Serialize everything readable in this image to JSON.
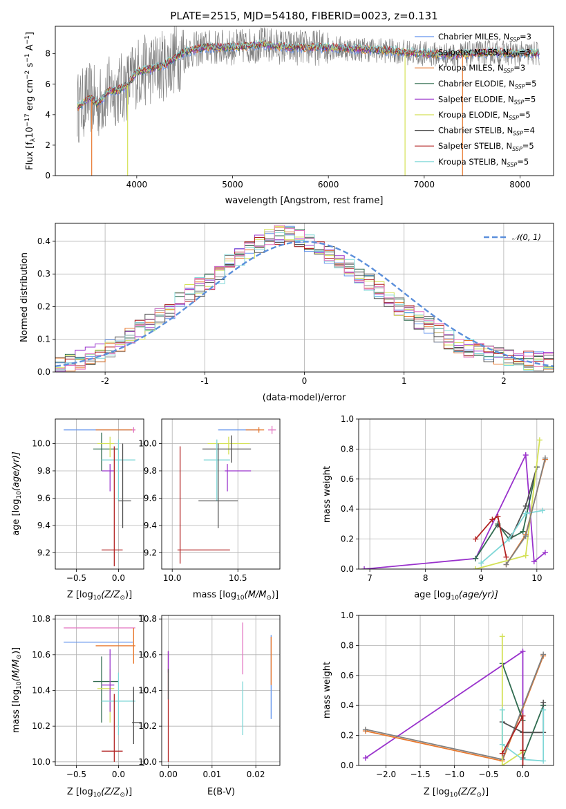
{
  "chart_data": [
    {
      "id": "spectrum",
      "type": "line",
      "title": "PLATE=2515, MJD=54180, FIBERID=0023, z=0.131",
      "xlabel": "wavelength [Angstrom, rest frame]",
      "ylabel_parts": [
        "Flux [f",
        "λ",
        "10",
        "−17",
        " erg cm",
        "−2",
        " s",
        "−1",
        " A",
        "−1",
        "]"
      ],
      "xlim": [
        3150,
        8350
      ],
      "ylim": [
        0,
        9.8
      ],
      "xticks": [
        4000,
        5000,
        6000,
        7000,
        8000
      ],
      "yticks": [
        0,
        2,
        4,
        6,
        8
      ],
      "grid": false,
      "legend_position": "top-right",
      "legend": [
        {
          "name": "Chabrier MILES, N",
          "sub": "SSP",
          "val": "=3",
          "color": "#6495ED"
        },
        {
          "name": "Salpeter MILES, N",
          "sub": "SSP",
          "val": "=3",
          "color": "#808080"
        },
        {
          "name": "Kroupa MILES, N",
          "sub": "SSP",
          "val": "=3",
          "color": "#E8782D"
        },
        {
          "name": "Chabrier ELODIE, N",
          "sub": "SSP",
          "val": "=5",
          "color": "#2F6B4F"
        },
        {
          "name": "Salpeter ELODIE, N",
          "sub": "SSP",
          "val": "=5",
          "color": "#9932CC"
        },
        {
          "name": "Kroupa ELODIE, N",
          "sub": "SSP",
          "val": "=5",
          "color": "#D4E157"
        },
        {
          "name": "Chabrier STELIB, N",
          "sub": "SSP",
          "val": "=4",
          "color": "#505050"
        },
        {
          "name": "Salpeter STELIB, N",
          "sub": "SSP",
          "val": "=5",
          "color": "#B22222"
        },
        {
          "name": "Kroupa STELIB, N",
          "sub": "SSP",
          "val": "=5",
          "color": "#7FD7D7"
        }
      ],
      "continuum": {
        "x": [
          3400,
          3500,
          3600,
          3700,
          3800,
          3900,
          4000,
          4100,
          4200,
          4300,
          4500,
          4700,
          5000,
          5300,
          5600,
          6000,
          6300,
          6600,
          7000,
          7300,
          7700,
          8000,
          8200
        ],
        "y": [
          4.5,
          5.1,
          4.7,
          5.5,
          5.6,
          5.9,
          6.8,
          6.9,
          7.1,
          7.3,
          8.1,
          8.4,
          8.4,
          8.6,
          8.4,
          8.4,
          8.3,
          8.2,
          8.0,
          7.9,
          8.1,
          8.0,
          8.0
        ]
      },
      "data_noise_amplitude": 1.2,
      "data_range": [
        3380,
        8200
      ],
      "dropouts": [
        {
          "x": 3530,
          "color": "#E8782D"
        },
        {
          "x": 3905,
          "color": "#D4E157"
        },
        {
          "x": 6800,
          "color": "#D4E157"
        },
        {
          "x": 7400,
          "color": "#E8782D"
        }
      ]
    },
    {
      "id": "residuals",
      "type": "step",
      "xlabel": "(data-model)/error",
      "ylabel": "Normed distribution",
      "xlim": [
        -2.5,
        2.5
      ],
      "ylim": [
        0,
        0.455
      ],
      "xticks": [
        -2,
        -1,
        0,
        1,
        2
      ],
      "yticks": [
        0.0,
        0.1,
        0.2,
        0.3,
        0.4
      ],
      "grid": true,
      "legend_position": "top-right",
      "legend": [
        {
          "name": "𝒩(0, 1)",
          "color": "#5B8FDB",
          "style": "dashed"
        }
      ],
      "bin_width": 0.1,
      "bin_start": -2.5,
      "envelope": [
        0.03,
        0.032,
        0.038,
        0.048,
        0.06,
        0.075,
        0.09,
        0.11,
        0.13,
        0.15,
        0.17,
        0.19,
        0.215,
        0.24,
        0.26,
        0.28,
        0.3,
        0.33,
        0.35,
        0.37,
        0.39,
        0.41,
        0.42,
        0.42,
        0.41,
        0.39,
        0.38,
        0.36,
        0.34,
        0.32,
        0.3,
        0.27,
        0.25,
        0.22,
        0.2,
        0.18,
        0.16,
        0.14,
        0.12,
        0.1,
        0.085,
        0.07,
        0.06,
        0.05,
        0.045,
        0.04,
        0.038,
        0.035,
        0.033,
        0.032
      ],
      "series_colors": [
        "#6495ED",
        "#808080",
        "#E8782D",
        "#2F6B4F",
        "#9932CC",
        "#D4E157",
        "#505050",
        "#B22222",
        "#7FD7D7",
        "#E377C2"
      ]
    },
    {
      "id": "age-vs-Z",
      "type": "errorbar",
      "xlabel_parts": [
        "Z [log",
        "10",
        "(Z/Z",
        "⊙",
        ")]"
      ],
      "ylabel_parts": [
        "age  [log",
        "10",
        "(age/yr)]"
      ],
      "xlim": [
        -0.75,
        0.3
      ],
      "ylim": [
        9.08,
        10.18
      ],
      "xticks": [
        -0.5,
        0.0
      ],
      "xtick_labels": [
        "−0.5",
        "0.0"
      ],
      "yticks": [
        9.2,
        9.4,
        9.6,
        9.8,
        10.0
      ],
      "grid": true,
      "points": [
        {
          "x": -0.05,
          "y": 10.1,
          "xerr": [
            0.6,
            0.25
          ],
          "yerr": [
            0,
            0
          ],
          "color": "#6495ED"
        },
        {
          "x": 0.18,
          "y": 10.1,
          "xerr": [
            0.45,
            0.02
          ],
          "yerr": [
            0,
            0
          ],
          "color": "#E8782D"
        },
        {
          "x": 0.18,
          "y": 10.1,
          "xerr": [
            0.02,
            0.02
          ],
          "yerr": [
            0.02,
            0.02
          ],
          "color": "#E377C2"
        },
        {
          "x": -0.2,
          "y": 9.96,
          "xerr": [
            0.1,
            0.2
          ],
          "yerr": [
            0.16,
            0.12
          ],
          "color": "#2F6B4F"
        },
        {
          "x": -0.1,
          "y": 10.0,
          "xerr": [
            0.15,
            0.05
          ],
          "yerr": [
            0.1,
            0.05
          ],
          "color": "#D4E157"
        },
        {
          "x": -0.1,
          "y": 9.8,
          "xerr": [
            0.1,
            0.05
          ],
          "yerr": [
            0.15,
            0.05
          ],
          "color": "#9932CC"
        },
        {
          "x": 0.0,
          "y": 9.88,
          "xerr": [
            0.2,
            0.2
          ],
          "yerr": [
            0.3,
            0.15
          ],
          "color": "#7FD7D7"
        },
        {
          "x": 0.05,
          "y": 9.58,
          "xerr": [
            0.05,
            0.1
          ],
          "yerr": [
            0.2,
            0.42
          ],
          "color": "#505050"
        },
        {
          "x": -0.05,
          "y": 9.22,
          "xerr": [
            0.15,
            0.1
          ],
          "yerr": [
            0.12,
            0.76
          ],
          "color": "#B22222"
        }
      ]
    },
    {
      "id": "age-vs-mass",
      "type": "errorbar",
      "xlabel_parts": [
        "mass [log",
        "10",
        "(M/M",
        "⊙",
        ")]"
      ],
      "xlim": [
        9.92,
        10.82
      ],
      "ylim": [
        9.08,
        10.18
      ],
      "xticks": [
        10.0,
        10.5
      ],
      "xtick_labels": [
        "10.0",
        "10.5"
      ],
      "yticks": [
        9.2,
        9.4,
        9.6,
        9.8,
        10.0
      ],
      "grid": true,
      "points": [
        {
          "x": 10.65,
          "y": 10.1,
          "xerr": [
            0.3,
            0.02
          ],
          "yerr": [
            0,
            0
          ],
          "color": "#6495ED"
        },
        {
          "x": 10.66,
          "y": 10.1,
          "xerr": [
            0.1,
            0.04
          ],
          "yerr": [
            0.02,
            0.02
          ],
          "color": "#E8782D"
        },
        {
          "x": 10.76,
          "y": 10.1,
          "xerr": [
            0.03,
            0.03
          ],
          "yerr": [
            0.03,
            0.03
          ],
          "color": "#E377C2"
        },
        {
          "x": 10.43,
          "y": 10.0,
          "xerr": [
            0.16,
            0.16
          ],
          "yerr": [
            0.08,
            0.05
          ],
          "color": "#D4E157"
        },
        {
          "x": 10.45,
          "y": 9.96,
          "xerr": [
            0.22,
            0.15
          ],
          "yerr": [
            0.1,
            0.1
          ],
          "color": "#505050"
        },
        {
          "x": 10.34,
          "y": 9.88,
          "xerr": [
            0.1,
            0.1
          ],
          "yerr": [
            0.3,
            0.15
          ],
          "color": "#7FD7D7"
        },
        {
          "x": 10.42,
          "y": 9.8,
          "xerr": [
            0.02,
            0.18
          ],
          "yerr": [
            0.15,
            0.05
          ],
          "color": "#9932CC"
        },
        {
          "x": 10.35,
          "y": 9.58,
          "xerr": [
            0.15,
            0.15
          ],
          "yerr": [
            0.2,
            0.42
          ],
          "color": "#505050"
        },
        {
          "x": 10.06,
          "y": 9.22,
          "xerr": [
            0.02,
            0.38
          ],
          "yerr": [
            0.1,
            0.76
          ],
          "color": "#B22222"
        }
      ]
    },
    {
      "id": "massweight-vs-age",
      "type": "line",
      "xlabel_parts": [
        "age  [log",
        "10",
        "(age/yr)]"
      ],
      "ylabel": "mass weight",
      "xlim": [
        6.8,
        10.3
      ],
      "ylim": [
        0,
        1.0
      ],
      "xticks": [
        7,
        8,
        9,
        10
      ],
      "yticks": [
        0.0,
        0.2,
        0.4,
        0.6,
        0.8,
        1.0
      ],
      "grid": true,
      "series": [
        {
          "color": "#9932CC",
          "x": [
            6.9,
            8.9,
            9.8,
            9.95,
            10.15
          ],
          "y": [
            0.0,
            0.07,
            0.76,
            0.05,
            0.11
          ]
        },
        {
          "color": "#2F6B4F",
          "x": [
            8.9,
            9.3,
            9.5,
            9.75,
            10.0
          ],
          "y": [
            0.07,
            0.3,
            0.2,
            0.25,
            0.68
          ]
        },
        {
          "color": "#505050",
          "x": [
            9.3,
            9.55,
            9.8,
            10.0
          ],
          "y": [
            0.29,
            0.22,
            0.42,
            0.68
          ]
        },
        {
          "color": "#D4E157",
          "x": [
            8.9,
            9.8,
            10.05
          ],
          "y": [
            0.0,
            0.09,
            0.86
          ]
        },
        {
          "color": "#7FD7D7",
          "x": [
            9.0,
            9.5,
            9.8,
            10.1
          ],
          "y": [
            0.04,
            0.2,
            0.37,
            0.39
          ]
        },
        {
          "color": "#B22222",
          "x": [
            8.9,
            9.2,
            9.3,
            9.45
          ],
          "y": [
            0.2,
            0.33,
            0.35,
            0.08
          ]
        },
        {
          "color": "#E8782D",
          "x": [
            9.45,
            9.8,
            10.15
          ],
          "y": [
            0.03,
            0.23,
            0.73
          ]
        },
        {
          "color": "#808080",
          "x": [
            9.45,
            9.8,
            10.15
          ],
          "y": [
            0.03,
            0.22,
            0.74
          ]
        }
      ]
    },
    {
      "id": "mass-vs-Z",
      "type": "errorbar",
      "xlabel_parts": [
        "Z [log",
        "10",
        "(Z/Z",
        "⊙",
        ")]"
      ],
      "ylabel_parts": [
        "mass [log",
        "10",
        "(M/M",
        "⊙",
        ")]"
      ],
      "xlim": [
        -0.75,
        0.3
      ],
      "ylim": [
        9.98,
        10.82
      ],
      "xticks": [
        -0.5,
        0.0
      ],
      "xtick_labels": [
        "−0.5",
        "0.0"
      ],
      "yticks": [
        10.0,
        10.2,
        10.4,
        10.6,
        10.8
      ],
      "grid": true,
      "points": [
        {
          "x": -0.05,
          "y": 10.75,
          "xerr": [
            0.6,
            0.25
          ],
          "yerr": [
            0,
            0
          ],
          "color": "#E377C2"
        },
        {
          "x": -0.05,
          "y": 10.67,
          "xerr": [
            0.6,
            0.22
          ],
          "yerr": [
            0,
            0
          ],
          "color": "#6495ED"
        },
        {
          "x": 0.18,
          "y": 10.65,
          "xerr": [
            0.45,
            0.02
          ],
          "yerr": [
            0.1,
            0.1
          ],
          "color": "#E8782D"
        },
        {
          "x": -0.2,
          "y": 10.45,
          "xerr": [
            0.1,
            0.2
          ],
          "yerr": [
            0.23,
            0.14
          ],
          "color": "#2F6B4F"
        },
        {
          "x": -0.1,
          "y": 10.41,
          "xerr": [
            0.15,
            0.05
          ],
          "yerr": [
            0.19,
            0.11
          ],
          "color": "#D4E157"
        },
        {
          "x": -0.1,
          "y": 10.43,
          "xerr": [
            0.1,
            0.05
          ],
          "yerr": [
            0.15,
            0.2
          ],
          "color": "#9932CC"
        },
        {
          "x": 0.0,
          "y": 10.34,
          "xerr": [
            0.2,
            0.2
          ],
          "yerr": [
            0.19,
            0.16
          ],
          "color": "#7FD7D7"
        },
        {
          "x": 0.18,
          "y": 10.22,
          "xerr": [
            0.02,
            0.1
          ],
          "yerr": [
            0.12,
            0.2
          ],
          "color": "#505050"
        },
        {
          "x": -0.05,
          "y": 10.06,
          "xerr": [
            0.15,
            0.1
          ],
          "yerr": [
            0.06,
            0.32
          ],
          "color": "#B22222"
        }
      ]
    },
    {
      "id": "mass-vs-ebv",
      "type": "errorbar",
      "xlabel": "E(B-V)",
      "xlim": [
        -0.0015,
        0.0255
      ],
      "ylim": [
        9.98,
        10.82
      ],
      "xticks": [
        0.0,
        0.01,
        0.02
      ],
      "xtick_labels": [
        "0.00",
        "0.01",
        "0.02"
      ],
      "yticks": [
        10.0,
        10.2,
        10.4,
        10.6,
        10.8
      ],
      "grid": true,
      "points": [
        {
          "x": 0.0,
          "y": 10.4,
          "xerr": [
            0,
            0
          ],
          "yerr": [
            0.4,
            0.22
          ],
          "color": "#B22222"
        },
        {
          "x": 0.0,
          "y": 10.55,
          "xerr": [
            0,
            0
          ],
          "yerr": [
            0.05,
            0.07
          ],
          "color": "#9932CC"
        },
        {
          "x": 0.0,
          "y": 10.45,
          "xerr": [
            0,
            0
          ],
          "yerr": [
            0.1,
            0.07
          ],
          "color": "#505050"
        },
        {
          "x": 0.017,
          "y": 10.63,
          "xerr": [
            0,
            0
          ],
          "yerr": [
            0.14,
            0.15
          ],
          "color": "#E377C2"
        },
        {
          "x": 0.017,
          "y": 10.3,
          "xerr": [
            0,
            0
          ],
          "yerr": [
            0.15,
            0.15
          ],
          "color": "#7FD7D7"
        },
        {
          "x": 0.0235,
          "y": 10.47,
          "xerr": [
            0,
            0
          ],
          "yerr": [
            0.23,
            0.24
          ],
          "color": "#6495ED"
        },
        {
          "x": 0.0235,
          "y": 10.55,
          "xerr": [
            0,
            0
          ],
          "yerr": [
            0.12,
            0.15
          ],
          "color": "#E8782D"
        }
      ]
    },
    {
      "id": "massweight-vs-Z",
      "type": "line",
      "xlabel_parts": [
        "Z [log",
        "10",
        "(Z/Z",
        "⊙",
        ")]"
      ],
      "ylabel": "mass weight",
      "xlim": [
        -2.4,
        0.45
      ],
      "ylim": [
        0,
        1.0
      ],
      "xticks": [
        -2.0,
        -1.5,
        -1.0,
        -0.5,
        0.0
      ],
      "xtick_labels": [
        "−2.0",
        "−1.5",
        "−1.0",
        "−0.5",
        "0.0"
      ],
      "yticks": [
        0.0,
        0.2,
        0.4,
        0.6,
        0.8,
        1.0
      ],
      "grid": true,
      "series": [
        {
          "color": "#9932CC",
          "x": [
            -2.3,
            0.0,
            0.0
          ],
          "y": [
            0.05,
            0.76,
            0.05
          ]
        },
        {
          "color": "#E8782D",
          "x": [
            -2.3,
            -0.3,
            0.3
          ],
          "y": [
            0.23,
            0.03,
            0.73
          ]
        },
        {
          "color": "#808080",
          "x": [
            -2.3,
            -0.3,
            0.3
          ],
          "y": [
            0.24,
            0.04,
            0.74
          ]
        },
        {
          "color": "#2F6B4F",
          "x": [
            -0.3,
            0.0,
            0.0,
            0.3
          ],
          "y": [
            0.68,
            0.3,
            0.05,
            0.4
          ]
        },
        {
          "color": "#D4E157",
          "x": [
            -0.3,
            -0.3,
            0.0
          ],
          "y": [
            0.86,
            0.0,
            0.09
          ]
        },
        {
          "color": "#505050",
          "x": [
            -0.3,
            0.0,
            0.3,
            0.3
          ],
          "y": [
            0.29,
            0.22,
            0.22,
            0.42
          ]
        },
        {
          "color": "#7FD7D7",
          "x": [
            -0.3,
            -0.3,
            0.0,
            0.3,
            0.3
          ],
          "y": [
            0.37,
            0.14,
            0.04,
            0.03,
            0.37
          ]
        },
        {
          "color": "#B22222",
          "x": [
            -0.3,
            0.0,
            0.0,
            0.0
          ],
          "y": [
            0.08,
            0.33,
            0.1,
            0.0
          ]
        }
      ]
    }
  ]
}
